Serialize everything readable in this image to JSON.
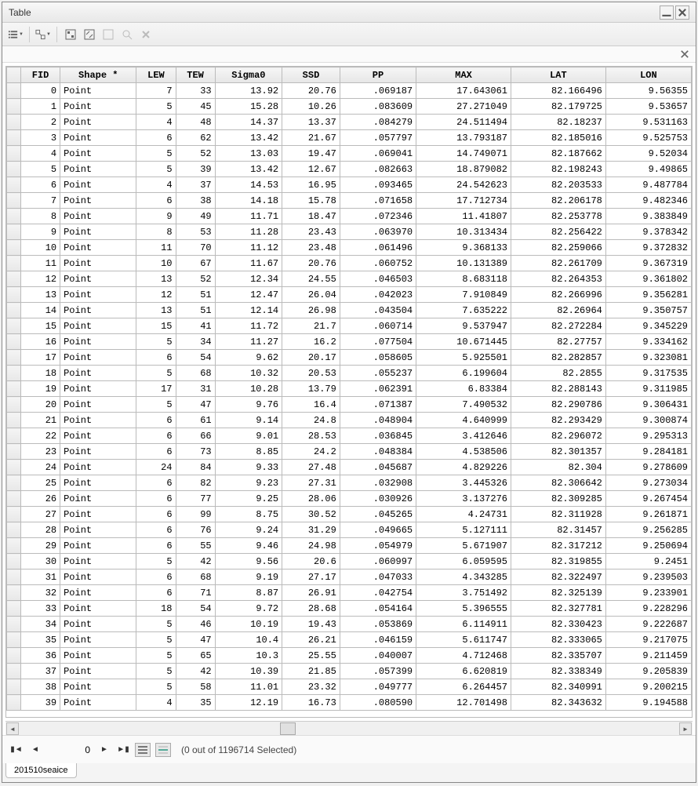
{
  "window": {
    "title": "Table"
  },
  "table": {
    "columns": [
      "FID",
      "Shape *",
      "LEW",
      "TEW",
      "Sigma0",
      "SSD",
      "PP",
      "MAX",
      "LAT",
      "LON"
    ],
    "rows": [
      [
        0,
        "Point",
        7,
        33,
        "13.92",
        "20.76",
        ".069187",
        "17.643061",
        "82.166496",
        "9.56355"
      ],
      [
        1,
        "Point",
        5,
        45,
        "15.28",
        "10.26",
        ".083609",
        "27.271049",
        "82.179725",
        "9.53657"
      ],
      [
        2,
        "Point",
        4,
        48,
        "14.37",
        "13.37",
        ".084279",
        "24.511494",
        "82.18237",
        "9.531163"
      ],
      [
        3,
        "Point",
        6,
        62,
        "13.42",
        "21.67",
        ".057797",
        "13.793187",
        "82.185016",
        "9.525753"
      ],
      [
        4,
        "Point",
        5,
        52,
        "13.03",
        "19.47",
        ".069041",
        "14.749071",
        "82.187662",
        "9.52034"
      ],
      [
        5,
        "Point",
        5,
        39,
        "13.42",
        "12.67",
        ".082663",
        "18.879082",
        "82.198243",
        "9.49865"
      ],
      [
        6,
        "Point",
        4,
        37,
        "14.53",
        "16.95",
        ".093465",
        "24.542623",
        "82.203533",
        "9.487784"
      ],
      [
        7,
        "Point",
        6,
        38,
        "14.18",
        "15.78",
        ".071658",
        "17.712734",
        "82.206178",
        "9.482346"
      ],
      [
        8,
        "Point",
        9,
        49,
        "11.71",
        "18.47",
        ".072346",
        "11.41807",
        "82.253778",
        "9.383849"
      ],
      [
        9,
        "Point",
        8,
        53,
        "11.28",
        "23.43",
        ".063970",
        "10.313434",
        "82.256422",
        "9.378342"
      ],
      [
        10,
        "Point",
        11,
        70,
        "11.12",
        "23.48",
        ".061496",
        "9.368133",
        "82.259066",
        "9.372832"
      ],
      [
        11,
        "Point",
        10,
        67,
        "11.67",
        "20.76",
        ".060752",
        "10.131389",
        "82.261709",
        "9.367319"
      ],
      [
        12,
        "Point",
        13,
        52,
        "12.34",
        "24.55",
        ".046503",
        "8.683118",
        "82.264353",
        "9.361802"
      ],
      [
        13,
        "Point",
        12,
        51,
        "12.47",
        "26.04",
        ".042023",
        "7.910849",
        "82.266996",
        "9.356281"
      ],
      [
        14,
        "Point",
        13,
        51,
        "12.14",
        "26.98",
        ".043504",
        "7.635222",
        "82.26964",
        "9.350757"
      ],
      [
        15,
        "Point",
        15,
        41,
        "11.72",
        "21.7",
        ".060714",
        "9.537947",
        "82.272284",
        "9.345229"
      ],
      [
        16,
        "Point",
        5,
        34,
        "11.27",
        "16.2",
        ".077504",
        "10.671445",
        "82.27757",
        "9.334162"
      ],
      [
        17,
        "Point",
        6,
        54,
        "9.62",
        "20.17",
        ".058605",
        "5.925501",
        "82.282857",
        "9.323081"
      ],
      [
        18,
        "Point",
        5,
        68,
        "10.32",
        "20.53",
        ".055237",
        "6.199604",
        "82.2855",
        "9.317535"
      ],
      [
        19,
        "Point",
        17,
        31,
        "10.28",
        "13.79",
        ".062391",
        "6.83384",
        "82.288143",
        "9.311985"
      ],
      [
        20,
        "Point",
        5,
        47,
        "9.76",
        "16.4",
        ".071387",
        "7.490532",
        "82.290786",
        "9.306431"
      ],
      [
        21,
        "Point",
        6,
        61,
        "9.14",
        "24.8",
        ".048904",
        "4.640999",
        "82.293429",
        "9.300874"
      ],
      [
        22,
        "Point",
        6,
        66,
        "9.01",
        "28.53",
        ".036845",
        "3.412646",
        "82.296072",
        "9.295313"
      ],
      [
        23,
        "Point",
        6,
        73,
        "8.85",
        "24.2",
        ".048384",
        "4.538506",
        "82.301357",
        "9.284181"
      ],
      [
        24,
        "Point",
        24,
        84,
        "9.33",
        "27.48",
        ".045687",
        "4.829226",
        "82.304",
        "9.278609"
      ],
      [
        25,
        "Point",
        6,
        82,
        "9.23",
        "27.31",
        ".032908",
        "3.445326",
        "82.306642",
        "9.273034"
      ],
      [
        26,
        "Point",
        6,
        77,
        "9.25",
        "28.06",
        ".030926",
        "3.137276",
        "82.309285",
        "9.267454"
      ],
      [
        27,
        "Point",
        6,
        99,
        "8.75",
        "30.52",
        ".045265",
        "4.24731",
        "82.311928",
        "9.261871"
      ],
      [
        28,
        "Point",
        6,
        76,
        "9.24",
        "31.29",
        ".049665",
        "5.127111",
        "82.31457",
        "9.256285"
      ],
      [
        29,
        "Point",
        6,
        55,
        "9.46",
        "24.98",
        ".054979",
        "5.671907",
        "82.317212",
        "9.250694"
      ],
      [
        30,
        "Point",
        5,
        42,
        "9.56",
        "20.6",
        ".060997",
        "6.059595",
        "82.319855",
        "9.2451"
      ],
      [
        31,
        "Point",
        6,
        68,
        "9.19",
        "27.17",
        ".047033",
        "4.343285",
        "82.322497",
        "9.239503"
      ],
      [
        32,
        "Point",
        6,
        71,
        "8.87",
        "26.91",
        ".042754",
        "3.751492",
        "82.325139",
        "9.233901"
      ],
      [
        33,
        "Point",
        18,
        54,
        "9.72",
        "28.68",
        ".054164",
        "5.396555",
        "82.327781",
        "9.228296"
      ],
      [
        34,
        "Point",
        5,
        46,
        "10.19",
        "19.43",
        ".053869",
        "6.114911",
        "82.330423",
        "9.222687"
      ],
      [
        35,
        "Point",
        5,
        47,
        "10.4",
        "26.21",
        ".046159",
        "5.611747",
        "82.333065",
        "9.217075"
      ],
      [
        36,
        "Point",
        5,
        65,
        "10.3",
        "25.55",
        ".040007",
        "4.712468",
        "82.335707",
        "9.211459"
      ],
      [
        37,
        "Point",
        5,
        42,
        "10.39",
        "21.85",
        ".057399",
        "6.620819",
        "82.338349",
        "9.205839"
      ],
      [
        38,
        "Point",
        5,
        58,
        "11.01",
        "23.32",
        ".049777",
        "6.264457",
        "82.340991",
        "9.200215"
      ],
      [
        39,
        "Point",
        4,
        35,
        "12.19",
        "16.73",
        ".080590",
        "12.701498",
        "82.343632",
        "9.194588"
      ]
    ],
    "column_alignments": [
      "right",
      "left",
      "right",
      "right",
      "right",
      "right",
      "right",
      "right",
      "right",
      "right"
    ],
    "header_bg": "#eeeeee",
    "row_bg": "#ffffff",
    "border_color": "#bbbbbb"
  },
  "navigation": {
    "current_record": 0,
    "selection_text": "(0 out of 1196714 Selected)"
  },
  "tab": {
    "label": "201510seaice"
  },
  "colors": {
    "window_bg": "#ffffff",
    "titlebar_gradient_top": "#f8f8f8",
    "titlebar_gradient_bottom": "#e8e8e8",
    "toolbar_gradient_top": "#f6f6f6",
    "toolbar_gradient_bottom": "#ececec",
    "border": "#888888"
  }
}
